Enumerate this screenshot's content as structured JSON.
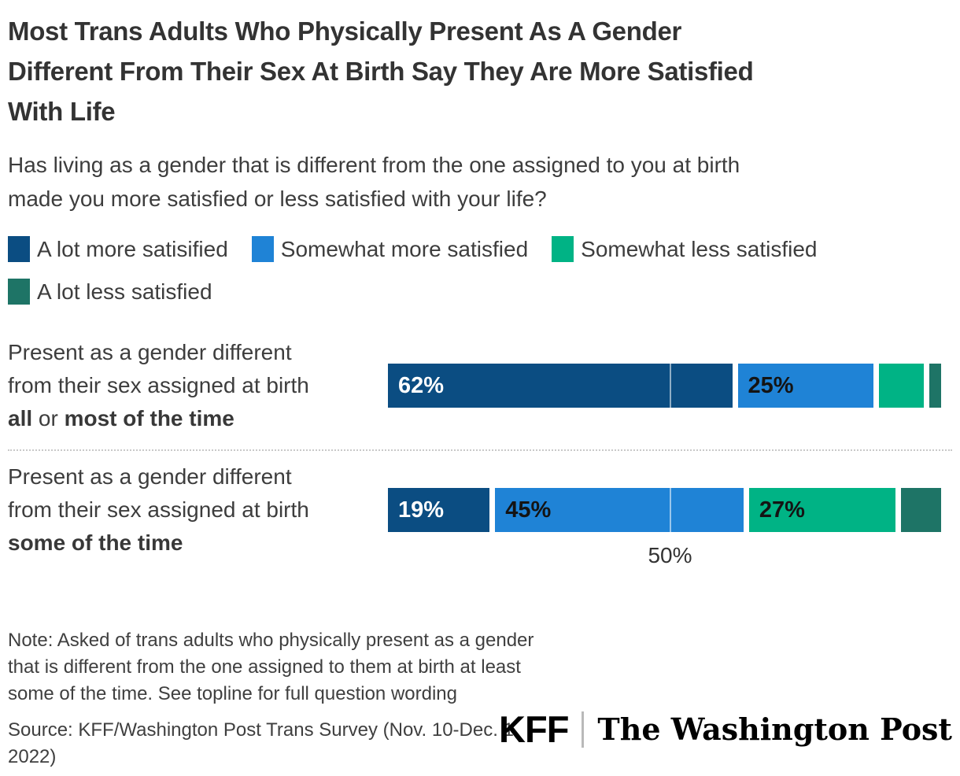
{
  "title_lines": [
    "Most Trans Adults Who Physically Present As A Gender",
    "Different From Their Sex At Birth Say They Are More Satisfied",
    "With Life"
  ],
  "subtitle_lines": [
    "Has living as a gender that is different from the one assigned to you at birth",
    "made you more satisfied or less satisfied with your life?"
  ],
  "legend": [
    {
      "label": "A lot more satisified",
      "color": "#0b4d82"
    },
    {
      "label": "Somewhat more satisfied",
      "color": "#1f83d6"
    },
    {
      "label": "Somewhat less satisfied",
      "color": "#00b385"
    },
    {
      "label": "A lot less satisfied",
      "color": "#1e7466"
    }
  ],
  "chart_data": {
    "type": "bar",
    "orientation": "horizontal",
    "stacked": true,
    "xlim": [
      0,
      100
    ],
    "grid": "single-gridline",
    "gridline": {
      "value": 50,
      "label": "50%"
    },
    "legend_position": "top",
    "categories": [
      "Present as a gender different from their sex assigned at birth all or most of the time",
      "Present as a gender different from their sex assigned at birth some of the time"
    ],
    "series": [
      {
        "name": "A lot more satisified",
        "color": "#0b4d82",
        "values": [
          62,
          19
        ]
      },
      {
        "name": "Somewhat more satisfied",
        "color": "#1f83d6",
        "values": [
          25,
          45
        ]
      },
      {
        "name": "Somewhat less satisfied",
        "color": "#00b385",
        "values": [
          9,
          27
        ]
      },
      {
        "name": "A lot less satisfied",
        "color": "#1e7466",
        "values": [
          3,
          8
        ]
      }
    ],
    "shown_data_labels": {
      "row_all_or_most": [
        "62%",
        "25%",
        "",
        ""
      ],
      "row_some": [
        "19%",
        "45%",
        "27%",
        ""
      ]
    }
  },
  "rows": [
    {
      "line1": "Present as a gender different",
      "line2": "from their sex assigned at birth",
      "bold1": "all",
      "mid": " or ",
      "bold2": "most of the time",
      "value_labels": [
        "62%",
        "25%",
        "",
        ""
      ]
    },
    {
      "line1": "Present as a gender different",
      "line2": "from their sex assigned at birth",
      "bold1": "some of the time",
      "mid": "",
      "bold2": "",
      "value_labels": [
        "19%",
        "45%",
        "27%",
        ""
      ]
    }
  ],
  "note_lines": [
    "Note: Asked of trans adults who physically present as a gender",
    "that is different from the one assigned to them at birth at least",
    "some of the time. See topline for full question wording"
  ],
  "source_lines": [
    "Source: KFF/Washington Post Trans Survey (Nov. 10-Dec. 1,",
    "2022)"
  ],
  "logos": {
    "kff": "KFF",
    "wapo": "The Washington Post"
  }
}
